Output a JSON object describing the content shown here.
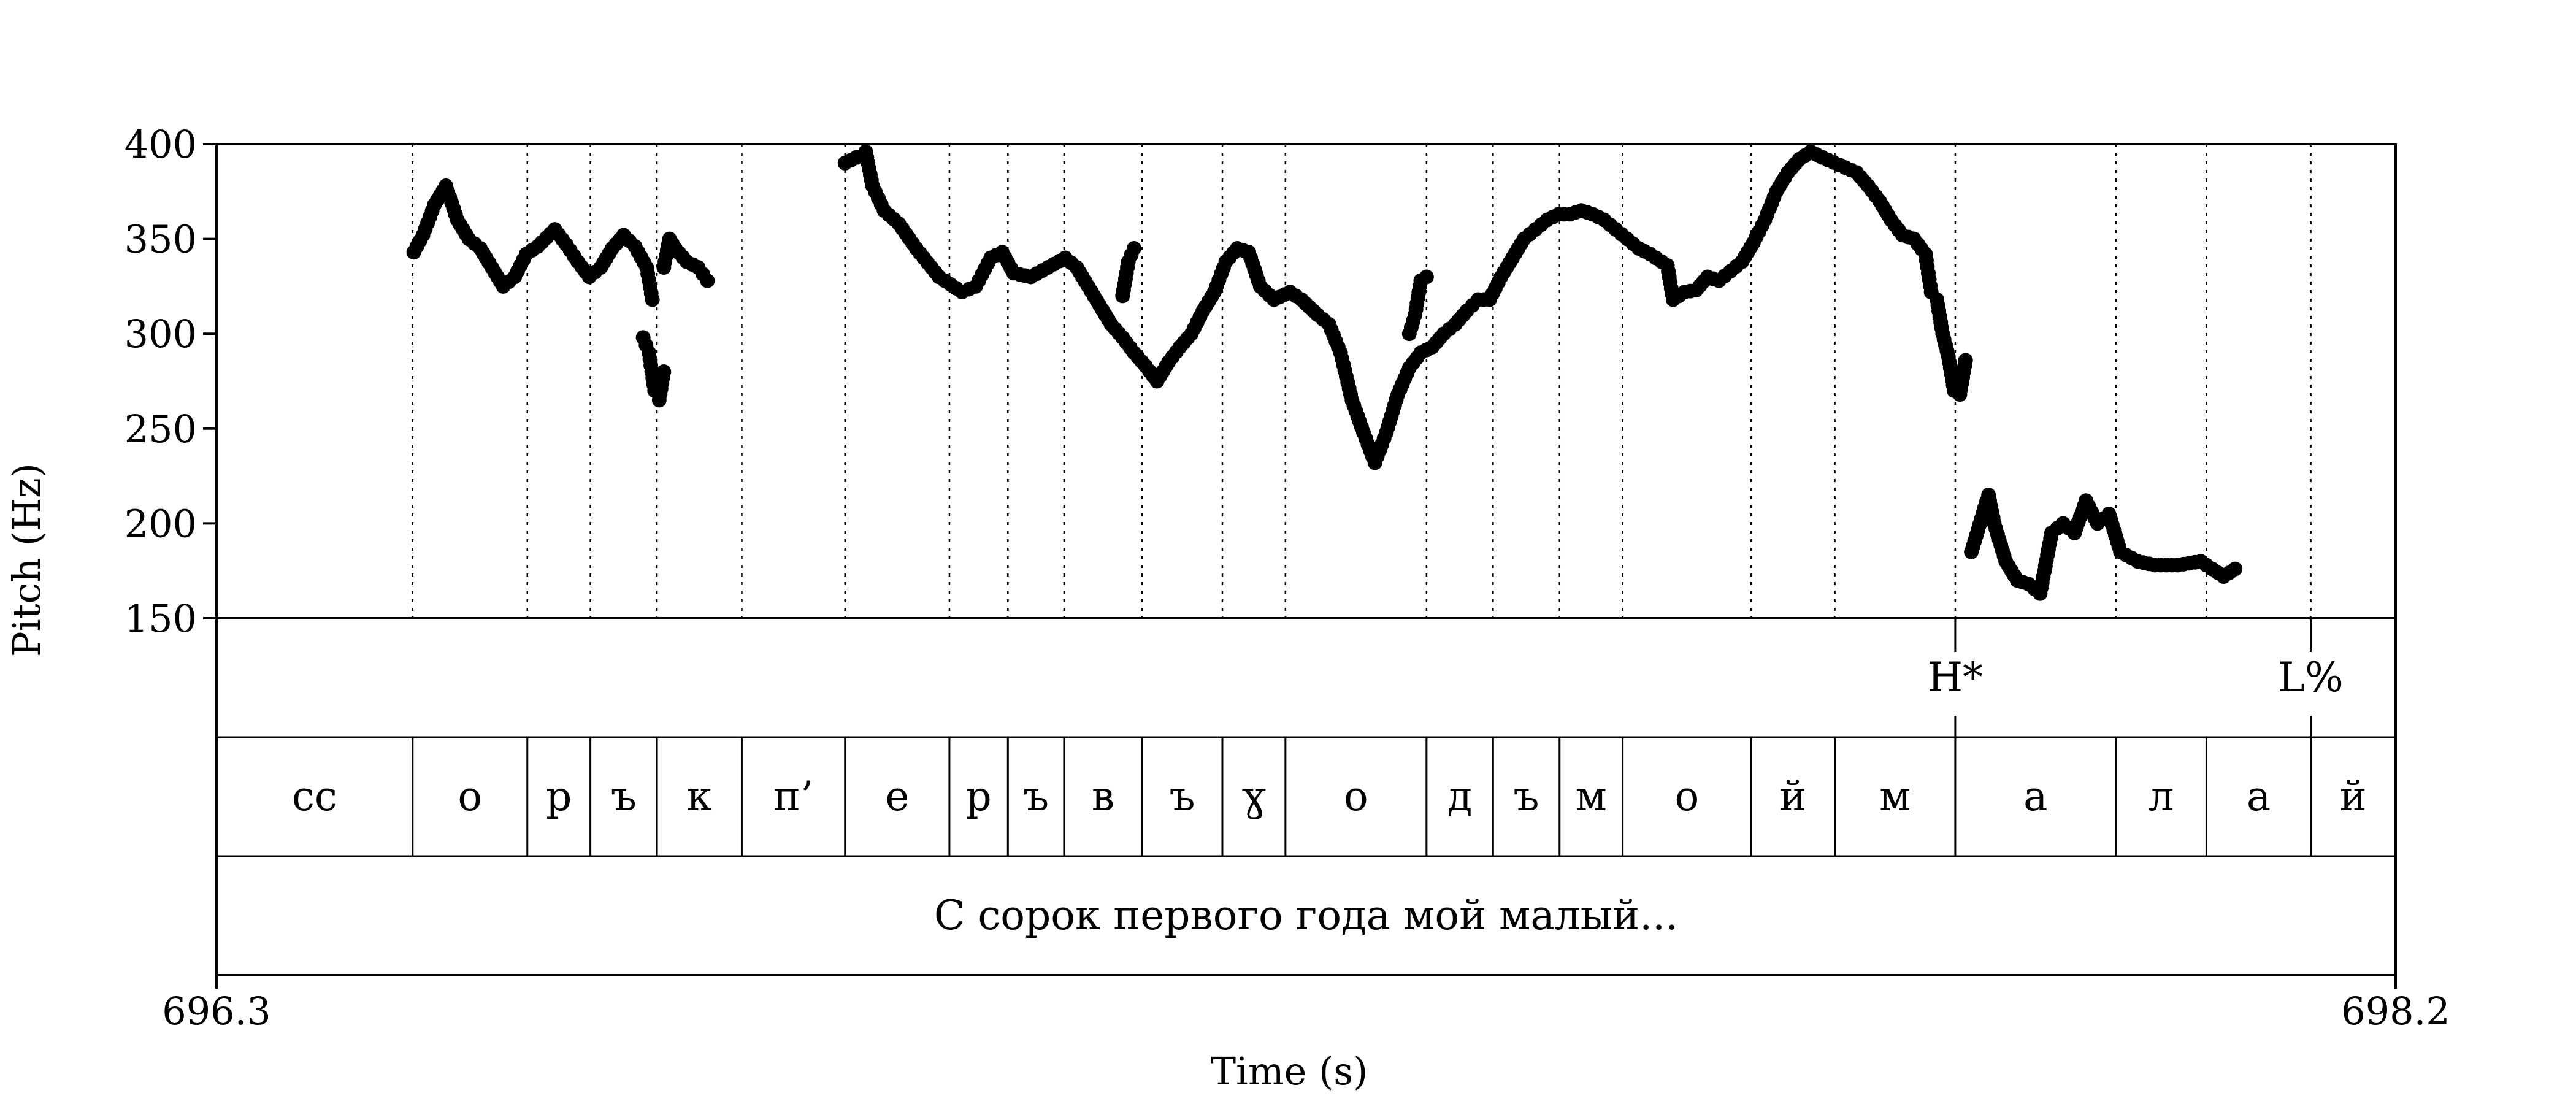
{
  "chart_data": {
    "type": "scatter",
    "xlabel": "Time (s)",
    "ylabel": "Pitch (Hz)",
    "xlim": [
      696.3,
      698.2
    ],
    "ylim": [
      150,
      400
    ],
    "x_tick_labels": [
      "696.3",
      "698.2"
    ],
    "y_ticks": [
      150,
      200,
      250,
      300,
      350,
      400
    ],
    "grid": false,
    "tiers": {
      "tones": [
        {
          "label": "H*",
          "time": 697.816
        },
        {
          "label": "L%",
          "time": 698.126
        }
      ],
      "segments": [
        {
          "label": "сс",
          "start": 696.3,
          "end": 696.471
        },
        {
          "label": "о",
          "start": 696.471,
          "end": 696.571
        },
        {
          "label": "р",
          "start": 696.571,
          "end": 696.626
        },
        {
          "label": "ъ",
          "start": 696.626,
          "end": 696.684
        },
        {
          "label": "к",
          "start": 696.684,
          "end": 696.758
        },
        {
          "label": "п’",
          "start": 696.758,
          "end": 696.848
        },
        {
          "label": "е",
          "start": 696.848,
          "end": 696.939
        },
        {
          "label": "р",
          "start": 696.939,
          "end": 696.99
        },
        {
          "label": "ъ",
          "start": 696.99,
          "end": 697.039
        },
        {
          "label": "в",
          "start": 697.039,
          "end": 697.107
        },
        {
          "label": "ъ",
          "start": 697.107,
          "end": 697.177
        },
        {
          "label": "ɣ",
          "start": 697.177,
          "end": 697.232
        },
        {
          "label": "о",
          "start": 697.232,
          "end": 697.355
        },
        {
          "label": "д",
          "start": 697.355,
          "end": 697.413
        },
        {
          "label": "ъ",
          "start": 697.413,
          "end": 697.471
        },
        {
          "label": "м",
          "start": 697.471,
          "end": 697.526
        },
        {
          "label": "о",
          "start": 697.526,
          "end": 697.638
        },
        {
          "label": "й",
          "start": 697.638,
          "end": 697.711
        },
        {
          "label": "м",
          "start": 697.711,
          "end": 697.816
        },
        {
          "label": "а",
          "start": 697.816,
          "end": 697.956
        },
        {
          "label": "л",
          "start": 697.956,
          "end": 698.035
        },
        {
          "label": "а",
          "start": 698.035,
          "end": 698.126
        },
        {
          "label": "й",
          "start": 698.126,
          "end": 698.2
        }
      ],
      "sentence": "С сорок первого года мой малый..."
    },
    "series": [
      {
        "contours": [
          [
            [
              696.472,
              343
            ],
            [
              696.48,
              352
            ],
            [
              696.49,
              368
            ],
            [
              696.5,
              378
            ],
            [
              696.51,
              360
            ],
            [
              696.52,
              350
            ],
            [
              696.53,
              345
            ],
            [
              696.54,
              335
            ],
            [
              696.55,
              325
            ],
            [
              696.56,
              330
            ],
            [
              696.57,
              342
            ],
            [
              696.58,
              346
            ],
            [
              696.595,
              355
            ],
            [
              696.605,
              347
            ],
            [
              696.615,
              338
            ],
            [
              696.625,
              330
            ],
            [
              696.635,
              335
            ],
            [
              696.645,
              345
            ],
            [
              696.655,
              352
            ],
            [
              696.665,
              346
            ],
            [
              696.675,
              335
            ],
            [
              696.68,
              318
            ]
          ],
          [
            [
              696.672,
              298
            ],
            [
              696.677,
              290
            ],
            [
              696.682,
              270
            ],
            [
              696.686,
              265
            ],
            [
              696.69,
              280
            ]
          ],
          [
            [
              696.69,
              335
            ],
            [
              696.695,
              350
            ],
            [
              696.7,
              345
            ],
            [
              696.71,
              338
            ],
            [
              696.72,
              335
            ],
            [
              696.728,
              328
            ]
          ],
          [
            [
              696.848,
              390
            ],
            [
              696.858,
              393
            ],
            [
              696.866,
              396
            ],
            [
              696.872,
              378
            ],
            [
              696.882,
              365
            ],
            [
              696.895,
              358
            ],
            [
              696.91,
              345
            ],
            [
              696.93,
              330
            ],
            [
              696.95,
              322
            ],
            [
              696.962,
              325
            ],
            [
              696.975,
              340
            ],
            [
              696.985,
              343
            ],
            [
              696.995,
              332
            ],
            [
              697.01,
              330
            ],
            [
              697.025,
              335
            ],
            [
              697.04,
              340
            ],
            [
              697.05,
              335
            ],
            [
              697.06,
              325
            ],
            [
              697.07,
              315
            ],
            [
              697.08,
              305
            ],
            [
              697.09,
              298
            ],
            [
              697.1,
              290
            ],
            [
              697.11,
              283
            ],
            [
              697.12,
              275
            ],
            [
              697.13,
              285
            ],
            [
              697.14,
              293
            ],
            [
              697.15,
              300
            ],
            [
              697.16,
              312
            ],
            [
              697.17,
              322
            ],
            [
              697.18,
              338
            ],
            [
              697.19,
              345
            ],
            [
              697.2,
              343
            ],
            [
              697.21,
              325
            ],
            [
              697.222,
              318
            ],
            [
              697.236,
              322
            ],
            [
              697.246,
              318
            ],
            [
              697.26,
              310
            ],
            [
              697.27,
              305
            ],
            [
              697.28,
              290
            ],
            [
              697.29,
              265
            ],
            [
              697.3,
              248
            ],
            [
              697.31,
              232
            ],
            [
              697.32,
              248
            ],
            [
              697.33,
              268
            ],
            [
              697.34,
              282
            ],
            [
              697.35,
              290
            ],
            [
              697.36,
              293
            ],
            [
              697.37,
              300
            ],
            [
              697.38,
              305
            ],
            [
              697.39,
              312
            ],
            [
              697.4,
              318
            ],
            [
              697.41,
              318
            ],
            [
              697.42,
              330
            ],
            [
              697.43,
              340
            ],
            [
              697.44,
              350
            ],
            [
              697.45,
              355
            ],
            [
              697.46,
              360
            ],
            [
              697.47,
              363
            ],
            [
              697.48,
              363
            ],
            [
              697.49,
              365
            ],
            [
              697.5,
              363
            ],
            [
              697.51,
              360
            ],
            [
              697.52,
              355
            ],
            [
              697.53,
              350
            ],
            [
              697.54,
              345
            ],
            [
              697.55,
              342
            ],
            [
              697.555,
              340
            ],
            [
              697.56,
              338
            ],
            [
              697.565,
              336
            ],
            [
              697.57,
              318
            ],
            [
              697.58,
              322
            ],
            [
              697.59,
              323
            ],
            [
              697.6,
              330
            ],
            [
              697.61,
              328
            ],
            [
              697.62,
              333
            ],
            [
              697.63,
              338
            ],
            [
              697.64,
              348
            ],
            [
              697.65,
              360
            ],
            [
              697.66,
              375
            ],
            [
              697.67,
              385
            ],
            [
              697.68,
              392
            ],
            [
              697.69,
              396
            ],
            [
              697.7,
              393
            ],
            [
              697.715,
              389
            ],
            [
              697.73,
              385
            ],
            [
              697.74,
              378
            ],
            [
              697.75,
              370
            ],
            [
              697.76,
              360
            ],
            [
              697.77,
              352
            ],
            [
              697.78,
              350
            ],
            [
              697.79,
              342
            ],
            [
              697.795,
              322
            ],
            [
              697.8,
              318
            ],
            [
              697.805,
              300
            ],
            [
              697.81,
              288
            ],
            [
              697.815,
              270
            ],
            [
              697.82,
              268
            ],
            [
              697.825,
              286
            ]
          ],
          [
            [
              697.34,
              300
            ],
            [
              697.345,
              310
            ],
            [
              697.35,
              328
            ],
            [
              697.355,
              330
            ]
          ],
          [
            [
              697.09,
              320
            ],
            [
              697.095,
              338
            ],
            [
              697.1,
              345
            ]
          ],
          [
            [
              697.83,
              185
            ],
            [
              697.84,
              205
            ],
            [
              697.845,
              215
            ],
            [
              697.85,
              200
            ],
            [
              697.86,
              180
            ],
            [
              697.87,
              170
            ],
            [
              697.88,
              168
            ],
            [
              697.89,
              163
            ],
            [
              697.9,
              195
            ],
            [
              697.91,
              200
            ],
            [
              697.92,
              195
            ],
            [
              697.93,
              212
            ],
            [
              697.94,
              200
            ],
            [
              697.95,
              205
            ],
            [
              697.96,
              185
            ],
            [
              697.975,
              180
            ],
            [
              697.99,
              178
            ],
            [
              698.01,
              178
            ],
            [
              698.03,
              180
            ],
            [
              698.05,
              172
            ],
            [
              698.06,
              176
            ]
          ]
        ]
      }
    ]
  }
}
